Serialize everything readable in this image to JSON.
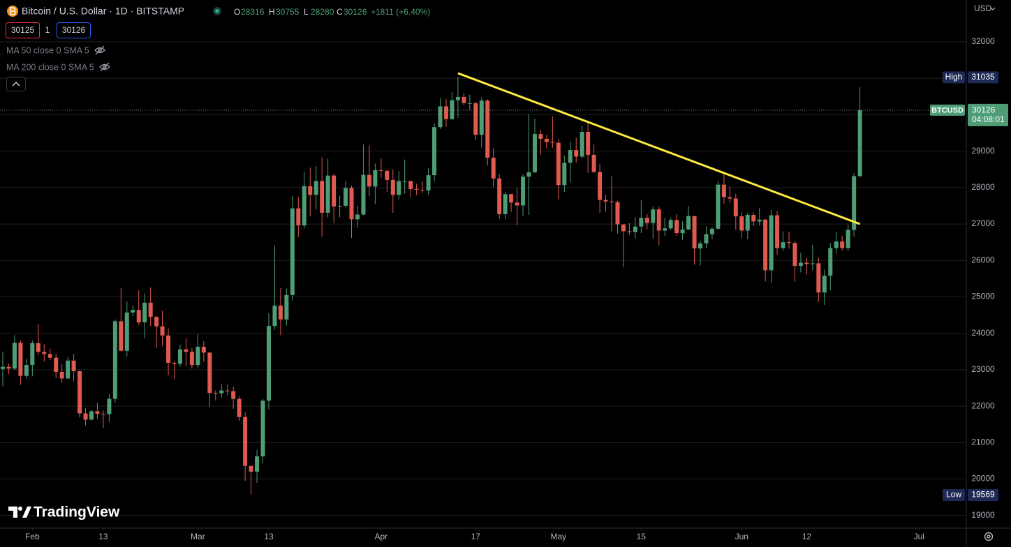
{
  "chart_data": {
    "type": "candlestick",
    "title": "Bitcoin / U.S. Dollar · 1D · BITSTAMP",
    "ohlc_legend": [
      {
        "label": "O",
        "value": 28316
      },
      {
        "label": "H",
        "value": 30755
      },
      {
        "label": "L",
        "value": 28280
      },
      {
        "label": "C",
        "value": 30126
      }
    ],
    "change": "+1811 (+6.40%)",
    "quote": {
      "bid": 30125,
      "spread": 1,
      "ask": 30126
    },
    "indicators": [
      "MA 50 close 0 SMA 5",
      "MA 200 close 0 SMA 5"
    ],
    "currency": "USD",
    "brand": "TradingView",
    "up_color": "#4e9d76",
    "down_color": "#e05a4f",
    "grid": true,
    "ylim": [
      18650,
      33150
    ],
    "yticks": [
      19000,
      20000,
      21000,
      22000,
      23000,
      24000,
      25000,
      26000,
      27000,
      28000,
      29000,
      30000,
      31000,
      32000
    ],
    "xlim": [
      "01-27",
      "07-09"
    ],
    "xticks": [
      {
        "value": "02-01",
        "label": "Feb"
      },
      {
        "value": "02-13",
        "label": "13"
      },
      {
        "value": "03-01",
        "label": "Mar"
      },
      {
        "value": "03-13",
        "label": "13"
      },
      {
        "value": "04-01",
        "label": "Apr"
      },
      {
        "value": "04-17",
        "label": "17"
      },
      {
        "value": "05-01",
        "label": "May"
      },
      {
        "value": "05-15",
        "label": "15"
      },
      {
        "value": "06-01",
        "label": "Jun"
      },
      {
        "value": "06-12",
        "label": "12"
      },
      {
        "value": "07-01",
        "label": "Jul"
      }
    ],
    "high_marker": {
      "label": "High",
      "value": 31035
    },
    "low_marker": {
      "label": "Low",
      "value": 19569
    },
    "price_marker": {
      "label": "BTCUSD",
      "value": 30126,
      "countdown": "04:08:01"
    },
    "trendline": {
      "x": [
        "04-14",
        "06-21"
      ],
      "y": [
        31140,
        27000
      ],
      "color": "#ffeb3b"
    },
    "x": [
      "01-27",
      "01-28",
      "01-29",
      "01-30",
      "01-31",
      "02-01",
      "02-02",
      "02-03",
      "02-04",
      "02-05",
      "02-06",
      "02-07",
      "02-08",
      "02-09",
      "02-10",
      "02-11",
      "02-12",
      "02-13",
      "02-14",
      "02-15",
      "02-16",
      "02-17",
      "02-18",
      "02-19",
      "02-20",
      "02-21",
      "02-22",
      "02-23",
      "02-24",
      "02-25",
      "02-26",
      "02-27",
      "02-28",
      "03-01",
      "03-02",
      "03-03",
      "03-04",
      "03-05",
      "03-06",
      "03-07",
      "03-08",
      "03-09",
      "03-10",
      "03-11",
      "03-12",
      "03-13",
      "03-14",
      "03-15",
      "03-16",
      "03-17",
      "03-18",
      "03-19",
      "03-20",
      "03-21",
      "03-22",
      "03-23",
      "03-24",
      "03-25",
      "03-26",
      "03-27",
      "03-28",
      "03-29",
      "03-30",
      "03-31",
      "04-01",
      "04-02",
      "04-03",
      "04-04",
      "04-05",
      "04-06",
      "04-07",
      "04-08",
      "04-09",
      "04-10",
      "04-11",
      "04-12",
      "04-13",
      "04-14",
      "04-15",
      "04-16",
      "04-17",
      "04-18",
      "04-19",
      "04-20",
      "04-21",
      "04-22",
      "04-23",
      "04-24",
      "04-25",
      "04-26",
      "04-27",
      "04-28",
      "04-29",
      "04-30",
      "05-01",
      "05-02",
      "05-03",
      "05-04",
      "05-05",
      "05-06",
      "05-07",
      "05-08",
      "05-09",
      "05-10",
      "05-11",
      "05-12",
      "05-13",
      "05-14",
      "05-15",
      "05-16",
      "05-17",
      "05-18",
      "05-19",
      "05-20",
      "05-21",
      "05-22",
      "05-23",
      "05-24",
      "05-25",
      "05-26",
      "05-27",
      "05-28",
      "05-29",
      "05-30",
      "05-31",
      "06-01",
      "06-02",
      "06-03",
      "06-04",
      "06-05",
      "06-06",
      "06-07",
      "06-08",
      "06-09",
      "06-10",
      "06-11",
      "06-12",
      "06-13",
      "06-14",
      "06-15",
      "06-16",
      "06-17",
      "06-18",
      "06-19",
      "06-20",
      "06-21"
    ],
    "open": [
      23020,
      23080,
      23030,
      23740,
      22830,
      23130,
      23730,
      23490,
      23430,
      23330,
      22940,
      22760,
      23250,
      22960,
      21800,
      21630,
      21860,
      21790,
      21780,
      22200,
      24330,
      23520,
      24570,
      24640,
      24300,
      24840,
      24450,
      24190,
      23940,
      23190,
      23160,
      23560,
      23490,
      23130,
      23630,
      23470,
      22360,
      22350,
      22430,
      22410,
      22200,
      21700,
      20360,
      20200,
      20620,
      22150,
      24200,
      24760,
      24380,
      25050,
      27430,
      26960,
      28040,
      27800,
      28180,
      27310,
      28330,
      27480,
      27500,
      27990,
      27130,
      27260,
      28350,
      28030,
      28480,
      28460,
      28210,
      27800,
      28180,
      28180,
      27960,
      27940,
      27920,
      28340,
      29660,
      30230,
      29880,
      30400,
      30490,
      30320,
      30320,
      29450,
      30390,
      28820,
      28250,
      27270,
      27820,
      27590,
      27510,
      28300,
      28420,
      29470,
      29340,
      29250,
      29230,
      28070,
      28680,
      29030,
      28850,
      29530,
      28900,
      28430,
      27660,
      27620,
      27600,
      26990,
      26800,
      26780,
      26930,
      27170,
      27030,
      27400,
      26820,
      26880,
      27110,
      26750,
      26850,
      27220,
      26330,
      26470,
      26720,
      26870,
      28080,
      27740,
      27700,
      27210,
      26820,
      27250,
      27070,
      27120,
      25730,
      27240,
      26340,
      26500,
      26480,
      25850,
      25940,
      25900,
      25920,
      25120,
      25580,
      26340,
      26520,
      26340,
      26840,
      28316
    ],
    "high": [
      23500,
      23170,
      23950,
      23800,
      23300,
      23800,
      24250,
      23700,
      23580,
      23440,
      23160,
      23350,
      23430,
      22990,
      21940,
      21900,
      22090,
      21880,
      22330,
      24380,
      25250,
      24880,
      24760,
      25180,
      25100,
      25260,
      24470,
      24620,
      24140,
      23230,
      23690,
      23870,
      23600,
      23970,
      23780,
      23480,
      22430,
      22610,
      22590,
      22530,
      22270,
      21830,
      20360,
      20800,
      22200,
      24550,
      26400,
      25240,
      25230,
      27770,
      27740,
      28430,
      28550,
      28590,
      28830,
      28800,
      28380,
      27780,
      28180,
      28050,
      27500,
      29180,
      29160,
      28660,
      28800,
      28490,
      28500,
      28450,
      28770,
      28190,
      28110,
      28160,
      28530,
      29770,
      30460,
      30440,
      30620,
      31035,
      30590,
      30550,
      30340,
      30480,
      30420,
      29090,
      28370,
      27880,
      27830,
      28000,
      28370,
      30020,
      29890,
      29580,
      29450,
      29960,
      29330,
      28880,
      29260,
      29370,
      29700,
      29840,
      29180,
      28650,
      27800,
      28310,
      27640,
      26980,
      27020,
      27190,
      27650,
      27270,
      27480,
      27480,
      27170,
      27170,
      27270,
      27080,
      27490,
      27220,
      26540,
      26940,
      26920,
      28180,
      28440,
      28040,
      27830,
      27330,
      27310,
      27320,
      27440,
      27140,
      27390,
      27360,
      26800,
      26790,
      26530,
      26210,
      26080,
      26430,
      26080,
      25750,
      26480,
      26780,
      26680,
      26980,
      28400,
      30755
    ],
    "low": [
      22550,
      22880,
      22990,
      22580,
      22750,
      22820,
      23400,
      23220,
      23260,
      22770,
      22640,
      22740,
      22680,
      21690,
      21470,
      21600,
      21650,
      21390,
      21560,
      22090,
      23500,
      23360,
      24470,
      24240,
      23870,
      24200,
      23600,
      23650,
      22850,
      22740,
      23090,
      23100,
      23030,
      23040,
      23210,
      21990,
      22160,
      22240,
      22290,
      21930,
      21590,
      19950,
      19569,
      19890,
      20440,
      21910,
      24100,
      23950,
      24210,
      24900,
      26640,
      26880,
      27210,
      27400,
      26650,
      27180,
      27030,
      27180,
      27450,
      26620,
      26900,
      27240,
      27760,
      27550,
      28270,
      27880,
      27310,
      27680,
      27830,
      27740,
      27790,
      27870,
      27810,
      28180,
      29610,
      29670,
      29860,
      29920,
      30260,
      30150,
      29300,
      29100,
      28600,
      28010,
      27140,
      27140,
      27330,
      26970,
      27230,
      27250,
      28400,
      28900,
      29080,
      29090,
      27680,
      27880,
      28140,
      28680,
      28810,
      28400,
      28390,
      27310,
      27340,
      26800,
      26740,
      25810,
      26700,
      26600,
      26750,
      26860,
      26590,
      26410,
      26670,
      26840,
      26680,
      26560,
      26830,
      25880,
      25860,
      26340,
      26580,
      26840,
      27560,
      27570,
      26840,
      26610,
      26580,
      26940,
      26960,
      25420,
      25380,
      26150,
      26260,
      26320,
      25420,
      25670,
      25620,
      25730,
      24860,
      24780,
      25180,
      26190,
      26270,
      26270,
      26650,
      28280
    ],
    "close": [
      23080,
      23030,
      23740,
      22830,
      23130,
      23730,
      23490,
      23430,
      23330,
      22940,
      22760,
      23250,
      22960,
      21800,
      21630,
      21860,
      21790,
      21780,
      22200,
      24330,
      23520,
      24570,
      24640,
      24300,
      24840,
      24450,
      24190,
      23940,
      23190,
      23160,
      23560,
      23490,
      23130,
      23630,
      23470,
      22360,
      22350,
      22430,
      22410,
      22200,
      21700,
      20360,
      20200,
      20620,
      22150,
      24200,
      24760,
      24380,
      25050,
      27430,
      26960,
      28040,
      27800,
      28180,
      27310,
      28330,
      27480,
      27500,
      27990,
      27130,
      27260,
      28350,
      28030,
      28480,
      28460,
      28210,
      27800,
      28180,
      28180,
      27960,
      27940,
      27920,
      28340,
      29660,
      30230,
      29880,
      30400,
      30490,
      30320,
      30320,
      29450,
      30390,
      28820,
      28250,
      27270,
      27820,
      27590,
      27510,
      28300,
      28420,
      29470,
      29340,
      29250,
      29230,
      28070,
      28680,
      29030,
      28850,
      29530,
      28900,
      28430,
      27660,
      27620,
      27600,
      26990,
      26800,
      26780,
      26930,
      27170,
      27030,
      27400,
      26820,
      26880,
      27110,
      26750,
      26850,
      27220,
      26330,
      26470,
      26720,
      26870,
      28080,
      27740,
      27700,
      27210,
      26820,
      27250,
      27070,
      27120,
      25730,
      27240,
      26340,
      26500,
      26480,
      25850,
      25940,
      25900,
      25920,
      25120,
      25580,
      26340,
      26520,
      26340,
      26840,
      28316,
      30126
    ]
  }
}
